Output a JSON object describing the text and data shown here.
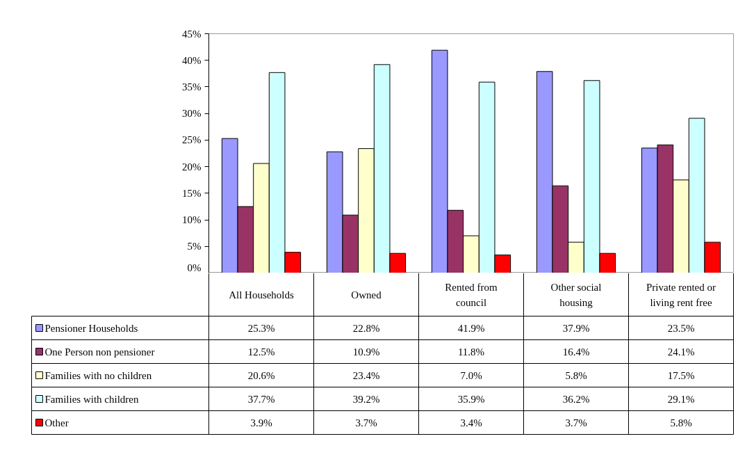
{
  "chart_data": {
    "type": "bar",
    "categories": [
      "All Households",
      "Owned",
      "Rented from council",
      "Other social housing",
      "Private rented or living rent free"
    ],
    "series": [
      {
        "name": "Pensioner Households",
        "color": "#9999ff",
        "values": [
          25.3,
          22.8,
          41.9,
          37.9,
          23.5
        ],
        "value_labels": [
          "25.3%",
          "22.8%",
          "41.9%",
          "37.9%",
          "23.5%"
        ]
      },
      {
        "name": "One Person non pensioner",
        "color": "#993366",
        "values": [
          12.5,
          10.9,
          11.8,
          16.4,
          24.1
        ],
        "value_labels": [
          "12.5%",
          "10.9%",
          "11.8%",
          "16.4%",
          "24.1%"
        ]
      },
      {
        "name": "Families with no children",
        "color": "#ffffcc",
        "values": [
          20.6,
          23.4,
          7.0,
          5.8,
          17.5
        ],
        "value_labels": [
          "20.6%",
          "23.4%",
          "7.0%",
          "5.8%",
          "17.5%"
        ]
      },
      {
        "name": "Families with children",
        "color": "#ccffff",
        "values": [
          37.7,
          39.2,
          35.9,
          36.2,
          29.1
        ],
        "value_labels": [
          "37.7%",
          "39.2%",
          "35.9%",
          "36.2%",
          "29.1%"
        ]
      },
      {
        "name": "Other",
        "color": "#ff0000",
        "values": [
          3.9,
          3.7,
          3.4,
          3.7,
          5.8
        ],
        "value_labels": [
          "3.9%",
          "3.7%",
          "3.4%",
          "3.7%",
          "5.8%"
        ]
      }
    ],
    "ylim": [
      0,
      45
    ],
    "yticks": [
      {
        "value": 0,
        "label": "0%"
      },
      {
        "value": 5,
        "label": "5%"
      },
      {
        "value": 10,
        "label": "10%"
      },
      {
        "value": 15,
        "label": "15%"
      },
      {
        "value": 20,
        "label": "20%"
      },
      {
        "value": 25,
        "label": "25%"
      },
      {
        "value": 30,
        "label": "30%"
      },
      {
        "value": 35,
        "label": "35%"
      },
      {
        "value": 40,
        "label": "40%"
      },
      {
        "value": 45,
        "label": "45%"
      }
    ],
    "legend": "bottom left"
  }
}
